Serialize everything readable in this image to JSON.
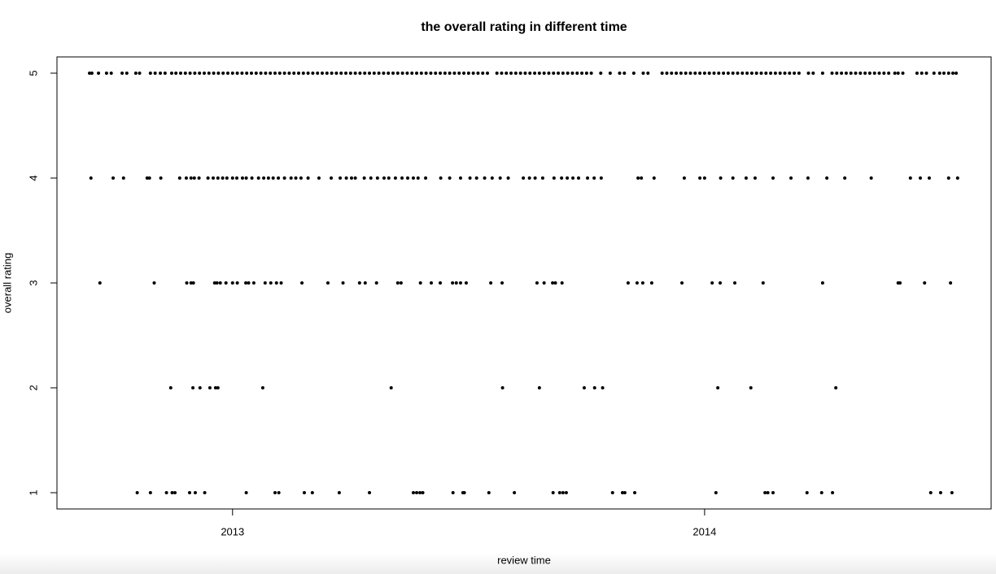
{
  "chart_data": {
    "type": "scatter",
    "title": "the overall rating in different time",
    "x_label": "review time",
    "y_label": "overall rating",
    "xlim": [
      2012.628,
      2014.607
    ],
    "ylim": [
      0.845,
      5.155
    ],
    "xticks": [
      2013,
      2014
    ],
    "yticks": [
      1,
      2,
      3,
      4,
      5
    ],
    "color": "#000000",
    "series": [
      {
        "y": 5,
        "x": [
          2012.697,
          2012.702,
          2012.716,
          2012.733,
          2012.743,
          2012.766,
          2012.776,
          2012.795,
          2012.803,
          2012.826,
          2012.836,
          2012.847,
          2012.857,
          2012.871,
          2012.88,
          2012.89,
          2012.9,
          2012.91,
          2012.92,
          2012.93,
          2012.94,
          2012.95,
          2012.96,
          2012.97,
          2012.98,
          2012.99,
          2013,
          2013.01,
          2013.02,
          2013.03,
          2013.04,
          2013.05,
          2013.06,
          2013.07,
          2013.08,
          2013.09,
          2013.1,
          2013.11,
          2013.12,
          2013.13,
          2013.14,
          2013.15,
          2013.16,
          2013.17,
          2013.18,
          2013.19,
          2013.2,
          2013.21,
          2013.22,
          2013.23,
          2013.24,
          2013.25,
          2013.26,
          2013.27,
          2013.28,
          2013.29,
          2013.3,
          2013.31,
          2013.32,
          2013.33,
          2013.34,
          2013.35,
          2013.36,
          2013.37,
          2013.38,
          2013.39,
          2013.4,
          2013.41,
          2013.42,
          2013.43,
          2013.44,
          2013.45,
          2013.46,
          2013.47,
          2013.48,
          2013.49,
          2013.5,
          2013.51,
          2013.52,
          2013.53,
          2013.54,
          2013.56,
          2013.57,
          2013.58,
          2013.59,
          2013.6,
          2013.61,
          2013.62,
          2013.63,
          2013.64,
          2013.65,
          2013.66,
          2013.67,
          2013.68,
          2013.69,
          2013.7,
          2013.71,
          2013.72,
          2013.73,
          2013.74,
          2013.75,
          2013.76,
          2013.78,
          2013.8,
          2013.82,
          2013.83,
          2013.85,
          2013.87,
          2013.88,
          2013.91,
          2013.92,
          2013.93,
          2013.94,
          2013.95,
          2013.96,
          2013.97,
          2013.98,
          2013.99,
          2014,
          2014.01,
          2014.02,
          2014.03,
          2014.04,
          2014.05,
          2014.06,
          2014.07,
          2014.08,
          2014.09,
          2014.1,
          2014.11,
          2014.12,
          2014.13,
          2014.14,
          2014.15,
          2014.16,
          2014.17,
          2014.18,
          2014.19,
          2014.2,
          2014.22,
          2014.23,
          2014.25,
          2014.27,
          2014.28,
          2014.29,
          2014.3,
          2014.31,
          2014.32,
          2014.33,
          2014.34,
          2014.35,
          2014.36,
          2014.37,
          2014.38,
          2014.39,
          2014.403,
          2014.41,
          2014.42,
          2014.45,
          2014.46,
          2014.47,
          2014.486,
          2014.498,
          2014.507,
          2014.517,
          2014.526,
          2014.533
        ]
      },
      {
        "y": 4,
        "x": [
          2012.7,
          2012.747,
          2012.769,
          2012.819,
          2012.824,
          2012.848,
          2012.888,
          2012.902,
          2012.912,
          2012.919,
          2012.929,
          2012.948,
          2012.959,
          2012.969,
          2012.979,
          2012.988,
          2013,
          2013.009,
          2013.021,
          2013.029,
          2013.041,
          2013.055,
          2013.066,
          2013.076,
          2013.086,
          2013.097,
          2013.11,
          2013.124,
          2013.134,
          2013.145,
          2013.16,
          2013.183,
          2013.209,
          2013.228,
          2013.241,
          2013.252,
          2013.26,
          2013.279,
          2013.293,
          2013.307,
          2013.321,
          2013.331,
          2013.345,
          2013.359,
          2013.371,
          2013.383,
          2013.393,
          2013.409,
          2013.441,
          2013.46,
          2013.483,
          2013.503,
          2013.517,
          2013.534,
          2013.55,
          2013.567,
          2013.584,
          2013.616,
          2013.629,
          2013.641,
          2013.657,
          2013.681,
          2013.697,
          2013.709,
          2013.721,
          2013.733,
          2013.752,
          2013.766,
          2013.781,
          2013.859,
          2013.866,
          2013.893,
          2013.957,
          2013.99,
          2014,
          2014.034,
          2014.06,
          2014.088,
          2014.107,
          2014.145,
          2014.183,
          2014.219,
          2014.259,
          2014.297,
          2014.353,
          2014.436,
          2014.457,
          2014.476,
          2014.517,
          2014.536
        ]
      },
      {
        "y": 3,
        "x": [
          2012.719,
          2012.834,
          2012.903,
          2012.912,
          2012.917,
          2012.962,
          2012.967,
          2012.974,
          2012.986,
          2013,
          2013.01,
          2013.028,
          2013.034,
          2013.045,
          2013.069,
          2013.081,
          2013.093,
          2013.103,
          2013.147,
          2013.202,
          2013.234,
          2013.269,
          2013.281,
          2013.305,
          2013.35,
          2013.357,
          2013.398,
          2013.421,
          2013.44,
          2013.466,
          2013.474,
          2013.483,
          2013.495,
          2013.547,
          2013.571,
          2013.645,
          2013.66,
          2013.678,
          2013.684,
          2013.698,
          2013.838,
          2013.857,
          2013.869,
          2013.888,
          2013.952,
          2014.016,
          2014.033,
          2014.064,
          2014.124,
          2014.25,
          2014.41,
          2014.414,
          2014.466,
          2014.521
        ]
      },
      {
        "y": 2,
        "x": [
          2012.869,
          2012.916,
          2012.931,
          2012.952,
          2012.964,
          2012.969,
          2013.064,
          2013.336,
          2013.572,
          2013.65,
          2013.745,
          2013.767,
          2013.784,
          2014.028,
          2014.098,
          2014.278
        ]
      },
      {
        "y": 1,
        "x": [
          2012.798,
          2012.826,
          2012.86,
          2012.872,
          2012.878,
          2012.909,
          2012.921,
          2012.941,
          2013.029,
          2013.09,
          2013.098,
          2013.152,
          2013.169,
          2013.226,
          2013.29,
          2013.383,
          2013.39,
          2013.397,
          2013.403,
          2013.467,
          2013.488,
          2013.491,
          2013.543,
          2013.597,
          2013.679,
          2013.693,
          2013.7,
          2013.707,
          2013.805,
          2013.826,
          2013.831,
          2013.852,
          2014.024,
          2014.128,
          2014.134,
          2014.145,
          2014.217,
          2014.248,
          2014.271,
          2014.479,
          2014.5,
          2014.524
        ]
      }
    ]
  }
}
